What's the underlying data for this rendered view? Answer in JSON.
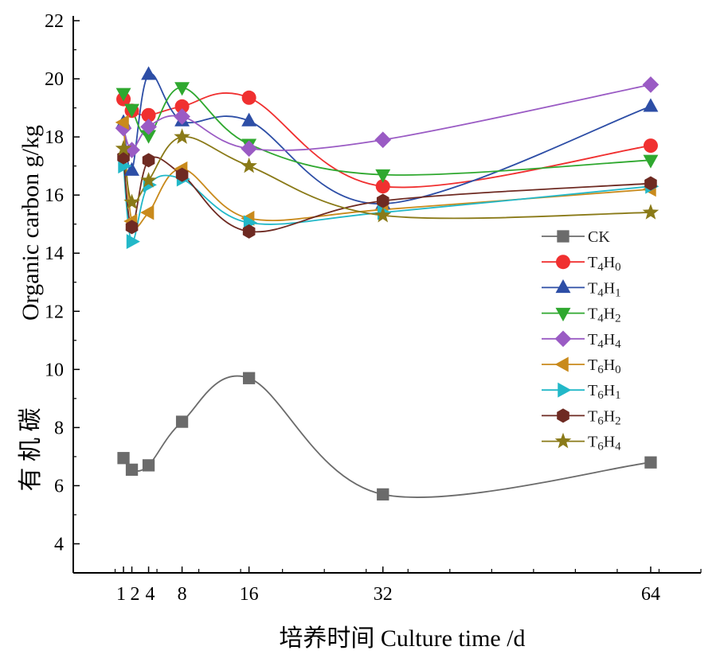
{
  "chart_data": {
    "type": "line",
    "xlabel": "培养时间 Culture time /d",
    "ylabel_en": "Organic carbon  g/kg",
    "ylabel_cn": "有 机 碳",
    "xlim": [
      -5,
      70
    ],
    "ylim": [
      3,
      22
    ],
    "x_ticks": [
      1,
      2,
      4,
      8,
      16,
      32,
      64
    ],
    "x_tick_labels": [
      "1",
      "2",
      "4",
      "8",
      "16",
      "32",
      "64"
    ],
    "y_ticks": [
      4,
      6,
      8,
      10,
      12,
      14,
      16,
      18,
      20,
      22
    ],
    "x": [
      1,
      2,
      4,
      8,
      16,
      32,
      64
    ],
    "legend_position": "right",
    "series": [
      {
        "name": "CK",
        "legend_base": "CK",
        "legend_sub": "",
        "legend_base2": "",
        "legend_sub2": "",
        "color": "#6b6b6b",
        "marker": "square",
        "values": [
          6.95,
          6.55,
          6.7,
          8.2,
          9.7,
          5.7,
          6.8
        ]
      },
      {
        "name": "T4H0",
        "legend_base": "T",
        "legend_sub": "4",
        "legend_base2": "H",
        "legend_sub2": "0",
        "color": "#f03030",
        "marker": "circle",
        "values": [
          19.3,
          18.9,
          18.75,
          19.05,
          19.35,
          16.3,
          17.7
        ]
      },
      {
        "name": "T4H1",
        "legend_base": "T",
        "legend_sub": "4",
        "legend_base2": "H",
        "legend_sub2": "1",
        "color": "#2d4ea6",
        "marker": "triangle-up",
        "values": [
          18.5,
          16.85,
          20.15,
          18.55,
          18.55,
          15.7,
          19.05
        ]
      },
      {
        "name": "T4H2",
        "legend_base": "T",
        "legend_sub": "4",
        "legend_base2": "H",
        "legend_sub2": "2",
        "color": "#2fa82f",
        "marker": "triangle-down",
        "values": [
          19.5,
          18.95,
          18.05,
          19.7,
          17.75,
          16.7,
          17.2
        ]
      },
      {
        "name": "T4H4",
        "legend_base": "T",
        "legend_sub": "4",
        "legend_base2": "H",
        "legend_sub2": "4",
        "color": "#9a5bc4",
        "marker": "diamond",
        "values": [
          18.3,
          17.55,
          18.35,
          18.7,
          17.6,
          17.9,
          19.8
        ]
      },
      {
        "name": "T6H0",
        "legend_base": "T",
        "legend_sub": "6",
        "legend_base2": "H",
        "legend_sub2": "0",
        "color": "#c98a1c",
        "marker": "triangle-left",
        "values": [
          18.5,
          15.1,
          15.4,
          16.9,
          15.2,
          15.5,
          16.2
        ]
      },
      {
        "name": "T6H1",
        "legend_base": "T",
        "legend_sub": "6",
        "legend_base2": "H",
        "legend_sub2": "1",
        "color": "#22b8c8",
        "marker": "triangle-right",
        "values": [
          17.0,
          14.4,
          16.35,
          16.55,
          15.05,
          15.4,
          16.3
        ]
      },
      {
        "name": "T6H2",
        "legend_base": "T",
        "legend_sub": "6",
        "legend_base2": "H",
        "legend_sub2": "2",
        "color": "#6e2a22",
        "marker": "hexagon",
        "values": [
          17.3,
          14.9,
          17.2,
          16.7,
          14.75,
          15.8,
          16.4
        ]
      },
      {
        "name": "T6H4",
        "legend_base": "T",
        "legend_sub": "6",
        "legend_base2": "H",
        "legend_sub2": "4",
        "color": "#8a7a18",
        "marker": "star",
        "values": [
          17.6,
          15.75,
          16.5,
          18.0,
          17.0,
          15.3,
          15.4
        ]
      }
    ]
  }
}
